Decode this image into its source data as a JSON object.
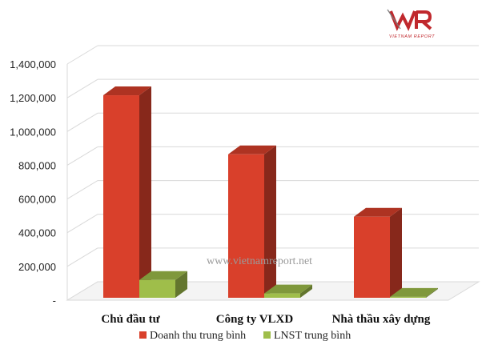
{
  "logo": {
    "wordmark": "VNR",
    "tagline": "VIETNAM REPORT"
  },
  "watermark": "www.vietnamreport.net",
  "colors": {
    "series1": "#d9402b",
    "series2": "#9fbe4a"
  },
  "chart_data": {
    "type": "bar",
    "categories": [
      "Chủ đầu tư",
      "Công ty VLXD",
      "Nhà thầu xây dựng"
    ],
    "series": [
      {
        "name": "Doanh thu trung bình",
        "values": [
          1210000,
          860000,
          490000
        ]
      },
      {
        "name": "LNST trung bình",
        "values": [
          115000,
          35000,
          15000
        ]
      }
    ],
    "ylim": [
      0,
      1400000
    ],
    "yticks": [
      0,
      200000,
      400000,
      600000,
      800000,
      1000000,
      1200000,
      1400000
    ],
    "ytick_labels": [
      "-",
      "200,000",
      "400,000",
      "600,000",
      "800,000",
      "1,000,000",
      "1,200,000",
      "1,400,000"
    ],
    "grid": true,
    "legend_position": "bottom",
    "style": "3d-column"
  }
}
